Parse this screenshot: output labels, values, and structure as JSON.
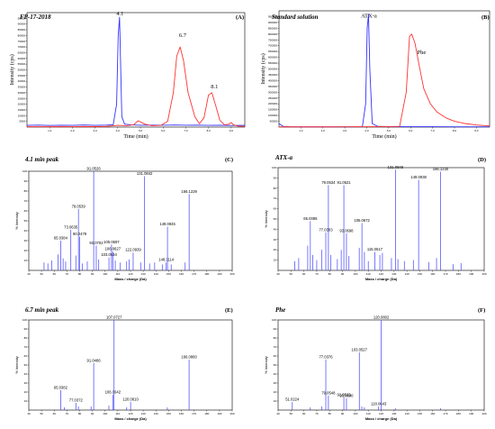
{
  "chart_data": [
    {
      "type": "line",
      "panel": "(A)",
      "title": "FP-17-2018",
      "xlabel": "Time (min)",
      "ylabel": "Intensity (cps)",
      "xlim": [
        0,
        9.6
      ],
      "ylim": [
        0,
        100000
      ],
      "x_ticks": [
        "1.0",
        "2.0",
        "3.0",
        "4.0",
        "5.0",
        "6.0",
        "7.0",
        "8.0",
        "9.0"
      ],
      "y_ticks": [
        "5000",
        "10000",
        "15000",
        "20000",
        "25000",
        "30000",
        "35000",
        "40000",
        "45000",
        "50000",
        "55000",
        "60000",
        "65000",
        "70000",
        "75000",
        "80000",
        "85000",
        "90000",
        "95000"
      ],
      "peak_labels": [
        {
          "x": 4.1,
          "y": 97000,
          "text": "4.1"
        },
        {
          "x": 6.7,
          "y": 78000,
          "text": "6.7"
        },
        {
          "x": 8.1,
          "y": 33000,
          "text": "8.1"
        }
      ],
      "series": [
        {
          "color": "#3333ff",
          "x": [
            0,
            0.5,
            1,
            1.5,
            2,
            2.5,
            3,
            3.5,
            3.8,
            3.95,
            4.02,
            4.08,
            4.12,
            4.18,
            4.3,
            4.6,
            5,
            5.5,
            6,
            6.5,
            7,
            7.5,
            8,
            8.5,
            9,
            9.6
          ],
          "y": [
            1500,
            1700,
            1400,
            1600,
            1500,
            1800,
            1500,
            1700,
            2000,
            20000,
            80000,
            96000,
            60000,
            9000,
            2600,
            1900,
            1600,
            1700,
            1600,
            1800,
            1600,
            1700,
            1500,
            1600,
            1400,
            1500
          ]
        },
        {
          "color": "#ff3333",
          "x": [
            0,
            0.5,
            1,
            1.5,
            2,
            2.5,
            3,
            3.5,
            4,
            4.4,
            4.7,
            4.9,
            5.2,
            5.5,
            5.9,
            6.2,
            6.45,
            6.6,
            6.75,
            6.9,
            7.1,
            7.4,
            7.6,
            7.8,
            8.0,
            8.15,
            8.3,
            8.5,
            8.7,
            8.9,
            9.0,
            9.1,
            9.3,
            9.6
          ],
          "y": [
            300,
            350,
            300,
            400,
            350,
            500,
            400,
            600,
            1500,
            1200,
            2000,
            5500,
            2500,
            1200,
            1500,
            5000,
            30000,
            62000,
            70000,
            58000,
            30000,
            9000,
            3000,
            8000,
            28000,
            30000,
            20000,
            6000,
            2000,
            2500,
            4000,
            2000,
            800,
            600
          ]
        }
      ]
    },
    {
      "type": "line",
      "panel": "(B)",
      "title": "Standard solution",
      "xlabel": "Time (min)",
      "ylabel": "Intensity (cps)",
      "xlim": [
        0,
        9.6
      ],
      "ylim": [
        0,
        1000000
      ],
      "x_ticks": [
        "1.0",
        "2.0",
        "3.0",
        "4.0",
        "5.0",
        "6.0",
        "7.0",
        "8.0",
        "9.0"
      ],
      "y_ticks": [
        "50000",
        "100000",
        "150000",
        "200000",
        "250000",
        "300000",
        "350000",
        "400000",
        "450000",
        "500000",
        "550000",
        "600000",
        "650000",
        "700000",
        "750000",
        "800000",
        "850000",
        "900000",
        "950000"
      ],
      "peak_labels": [
        {
          "x": 4.1,
          "y": 935000,
          "text": "ATX-a"
        },
        {
          "x": 6.3,
          "y": 620000,
          "text": "Phe"
        }
      ],
      "series": [
        {
          "color": "#3333ff",
          "x": [
            0,
            0.2,
            0.5,
            1,
            2,
            3,
            3.8,
            3.95,
            4.02,
            4.08,
            4.14,
            4.25,
            4.5,
            5,
            6,
            7,
            8,
            9,
            9.6
          ],
          "y": [
            30000,
            5000,
            3000,
            2000,
            2000,
            2500,
            3000,
            200000,
            850000,
            970000,
            500000,
            30000,
            6000,
            4000,
            3000,
            3000,
            2500,
            2500,
            2500
          ]
        },
        {
          "color": "#ff3333",
          "x": [
            0,
            1,
            2,
            3,
            4,
            5,
            5.5,
            5.8,
            5.95,
            6.05,
            6.2,
            6.4,
            6.6,
            6.9,
            7.2,
            7.6,
            8.0,
            8.5,
            9.0,
            9.6
          ],
          "y": [
            2000,
            2000,
            2000,
            2500,
            3000,
            4000,
            6000,
            300000,
            780000,
            800000,
            720000,
            520000,
            330000,
            200000,
            130000,
            80000,
            50000,
            30000,
            18000,
            10000
          ]
        }
      ]
    },
    {
      "type": "bar",
      "panel": "(C)",
      "title": "4.1 min peak",
      "xlabel": "Mass / charge (Da)",
      "ylabel": "% Intensity",
      "xlim": [
        40,
        200
      ],
      "ylim": [
        0,
        100
      ],
      "x_ticks": [
        "40",
        "50",
        "60",
        "70",
        "80",
        "90",
        "100",
        "110",
        "120",
        "130",
        "140",
        "150",
        "160",
        "170",
        "180",
        "190",
        "200"
      ],
      "y_ticks": [
        "10",
        "20",
        "30",
        "40",
        "50",
        "60",
        "70",
        "80",
        "90",
        "100"
      ],
      "peaks": [
        {
          "mz": 65.0384,
          "intensity": 30,
          "label": "65.0384"
        },
        {
          "mz": 79.0539,
          "intensity": 62,
          "label": "79.0539"
        },
        {
          "mz": 73.0635,
          "intensity": 41,
          "label": "73.0635"
        },
        {
          "mz": 80.0479,
          "intensity": 34,
          "label": "80.0479"
        },
        {
          "mz": 91.0526,
          "intensity": 100,
          "label": "91.0526"
        },
        {
          "mz": 93.0702,
          "intensity": 25,
          "label": "93.0702"
        },
        {
          "mz": 103.0534,
          "intensity": 13,
          "label": "103.0534"
        },
        {
          "mz": 105.0697,
          "intensity": 26,
          "label": "105.0697"
        },
        {
          "mz": 106.0627,
          "intensity": 19,
          "label": "106.0627"
        },
        {
          "mz": 122.0939,
          "intensity": 18,
          "label": "122.0939"
        },
        {
          "mz": 131.0842,
          "intensity": 95,
          "label": "131.0842"
        },
        {
          "mz": 148.1114,
          "intensity": 8,
          "label": "148.1114"
        },
        {
          "mz": 149.0945,
          "intensity": 44,
          "label": "149.0945"
        },
        {
          "mz": 166.1229,
          "intensity": 77,
          "label": "166.1229"
        },
        {
          "mz": 52,
          "intensity": 8
        },
        {
          "mz": 55,
          "intensity": 7
        },
        {
          "mz": 58,
          "intensity": 10
        },
        {
          "mz": 63,
          "intensity": 16
        },
        {
          "mz": 67,
          "intensity": 12
        },
        {
          "mz": 69,
          "intensity": 9
        },
        {
          "mz": 77,
          "intensity": 15
        },
        {
          "mz": 82,
          "intensity": 7
        },
        {
          "mz": 86,
          "intensity": 9
        },
        {
          "mz": 95,
          "intensity": 11
        },
        {
          "mz": 108,
          "intensity": 10
        },
        {
          "mz": 112,
          "intensity": 8
        },
        {
          "mz": 117,
          "intensity": 9
        },
        {
          "mz": 119,
          "intensity": 11
        },
        {
          "mz": 128,
          "intensity": 8
        },
        {
          "mz": 135,
          "intensity": 7
        },
        {
          "mz": 139,
          "intensity": 8
        },
        {
          "mz": 145,
          "intensity": 6
        },
        {
          "mz": 152,
          "intensity": 6
        },
        {
          "mz": 163,
          "intensity": 8
        }
      ]
    },
    {
      "type": "bar",
      "panel": "(D)",
      "title": "ATX-a",
      "xlabel": "Mass / charge (Da)",
      "ylabel": "% Intensity",
      "xlim": [
        40,
        200
      ],
      "ylim": [
        0,
        100
      ],
      "x_ticks": [
        "40",
        "50",
        "60",
        "70",
        "80",
        "90",
        "100",
        "110",
        "120",
        "130",
        "140",
        "150",
        "160",
        "170",
        "180",
        "190",
        "200"
      ],
      "y_ticks": [
        "10",
        "20",
        "30",
        "40",
        "50",
        "60",
        "70",
        "80",
        "90",
        "100"
      ],
      "peaks": [
        {
          "mz": 65.0386,
          "intensity": 48,
          "label": "65.0386"
        },
        {
          "mz": 77.0383,
          "intensity": 37,
          "label": "77.0383"
        },
        {
          "mz": 79.0534,
          "intensity": 83,
          "label": "79.0534"
        },
        {
          "mz": 91.0521,
          "intensity": 83,
          "label": "91.0521"
        },
        {
          "mz": 93.0698,
          "intensity": 36,
          "label": "93.0698"
        },
        {
          "mz": 105.0672,
          "intensity": 46,
          "label": "105.0672"
        },
        {
          "mz": 115.0517,
          "intensity": 18,
          "label": "115.0517"
        },
        {
          "mz": 131.0849,
          "intensity": 98,
          "label": "131.0849"
        },
        {
          "mz": 149.0938,
          "intensity": 88,
          "label": "149.0938"
        },
        {
          "mz": 166.123,
          "intensity": 96,
          "label": "166.1230"
        },
        {
          "mz": 53,
          "intensity": 9
        },
        {
          "mz": 56,
          "intensity": 12
        },
        {
          "mz": 63,
          "intensity": 24
        },
        {
          "mz": 67,
          "intensity": 15
        },
        {
          "mz": 70,
          "intensity": 10
        },
        {
          "mz": 74,
          "intensity": 20
        },
        {
          "mz": 81,
          "intensity": 15
        },
        {
          "mz": 86,
          "intensity": 11
        },
        {
          "mz": 89,
          "intensity": 20
        },
        {
          "mz": 95,
          "intensity": 14
        },
        {
          "mz": 103,
          "intensity": 22
        },
        {
          "mz": 107,
          "intensity": 18
        },
        {
          "mz": 110,
          "intensity": 9
        },
        {
          "mz": 119,
          "intensity": 15
        },
        {
          "mz": 121,
          "intensity": 17
        },
        {
          "mz": 128,
          "intensity": 12
        },
        {
          "mz": 133,
          "intensity": 11
        },
        {
          "mz": 138,
          "intensity": 9
        },
        {
          "mz": 145,
          "intensity": 10
        },
        {
          "mz": 157,
          "intensity": 8
        },
        {
          "mz": 163,
          "intensity": 12
        },
        {
          "mz": 176,
          "intensity": 6
        },
        {
          "mz": 182,
          "intensity": 7
        }
      ]
    },
    {
      "type": "bar",
      "panel": "(E)",
      "title": "6.7 min peak",
      "xlabel": "Mass / charge (Da)",
      "ylabel": "% Intensity",
      "xlim": [
        40,
        200
      ],
      "ylim": [
        0,
        100
      ],
      "x_ticks": [
        "40",
        "50",
        "60",
        "70",
        "80",
        "90",
        "100",
        "110",
        "120",
        "130",
        "140",
        "150",
        "160",
        "170",
        "180",
        "190",
        "200"
      ],
      "y_ticks": [
        "10",
        "20",
        "30",
        "40",
        "50",
        "60",
        "70",
        "80",
        "90",
        "100"
      ],
      "peaks": [
        {
          "mz": 65.0382,
          "intensity": 22,
          "label": "65.0382"
        },
        {
          "mz": 77.0372,
          "intensity": 8,
          "label": "77.0372"
        },
        {
          "mz": 91.0486,
          "intensity": 52,
          "label": "91.0486"
        },
        {
          "mz": 106.0642,
          "intensity": 17,
          "label": "106.0642"
        },
        {
          "mz": 107.0727,
          "intensity": 100,
          "label": "107.0727"
        },
        {
          "mz": 120.081,
          "intensity": 9,
          "label": "120.0810"
        },
        {
          "mz": 166.086,
          "intensity": 56,
          "label": "166.0860"
        },
        {
          "mz": 68,
          "intensity": 3
        },
        {
          "mz": 79,
          "intensity": 4
        },
        {
          "mz": 89,
          "intensity": 4
        },
        {
          "mz": 103,
          "intensity": 5
        },
        {
          "mz": 117,
          "intensity": 3
        },
        {
          "mz": 149,
          "intensity": 3
        }
      ]
    },
    {
      "type": "bar",
      "panel": "(F)",
      "title": "Phe",
      "xlabel": "Mass / charge (Da)",
      "ylabel": "% Intensity",
      "xlim": [
        40,
        200
      ],
      "ylim": [
        0,
        100
      ],
      "x_ticks": [
        "40",
        "50",
        "60",
        "70",
        "80",
        "90",
        "100",
        "110",
        "120",
        "130",
        "140",
        "150",
        "160",
        "170",
        "180",
        "190",
        "200"
      ],
      "y_ticks": [
        "10",
        "20",
        "30",
        "40",
        "50",
        "60",
        "70",
        "80",
        "90",
        "100"
      ],
      "peaks": [
        {
          "mz": 51.0224,
          "intensity": 9,
          "label": "51.0224"
        },
        {
          "mz": 77.0376,
          "intensity": 56,
          "label": "77.0376"
        },
        {
          "mz": 79.0548,
          "intensity": 16,
          "label": "79.0548"
        },
        {
          "mz": 91.0533,
          "intensity": 14,
          "label": "91.0533"
        },
        {
          "mz": 93.069,
          "intensity": 13,
          "label": "93.0690"
        },
        {
          "mz": 103.0527,
          "intensity": 64,
          "label": "103.0527"
        },
        {
          "mz": 118.0643,
          "intensity": 4,
          "label": "118.0643"
        },
        {
          "mz": 120.0802,
          "intensity": 100,
          "label": "120.0802"
        },
        {
          "mz": 65,
          "intensity": 3
        },
        {
          "mz": 74,
          "intensity": 4
        },
        {
          "mz": 105,
          "intensity": 4
        },
        {
          "mz": 107,
          "intensity": 3
        },
        {
          "mz": 131,
          "intensity": 2
        },
        {
          "mz": 166,
          "intensity": 2
        }
      ]
    }
  ]
}
